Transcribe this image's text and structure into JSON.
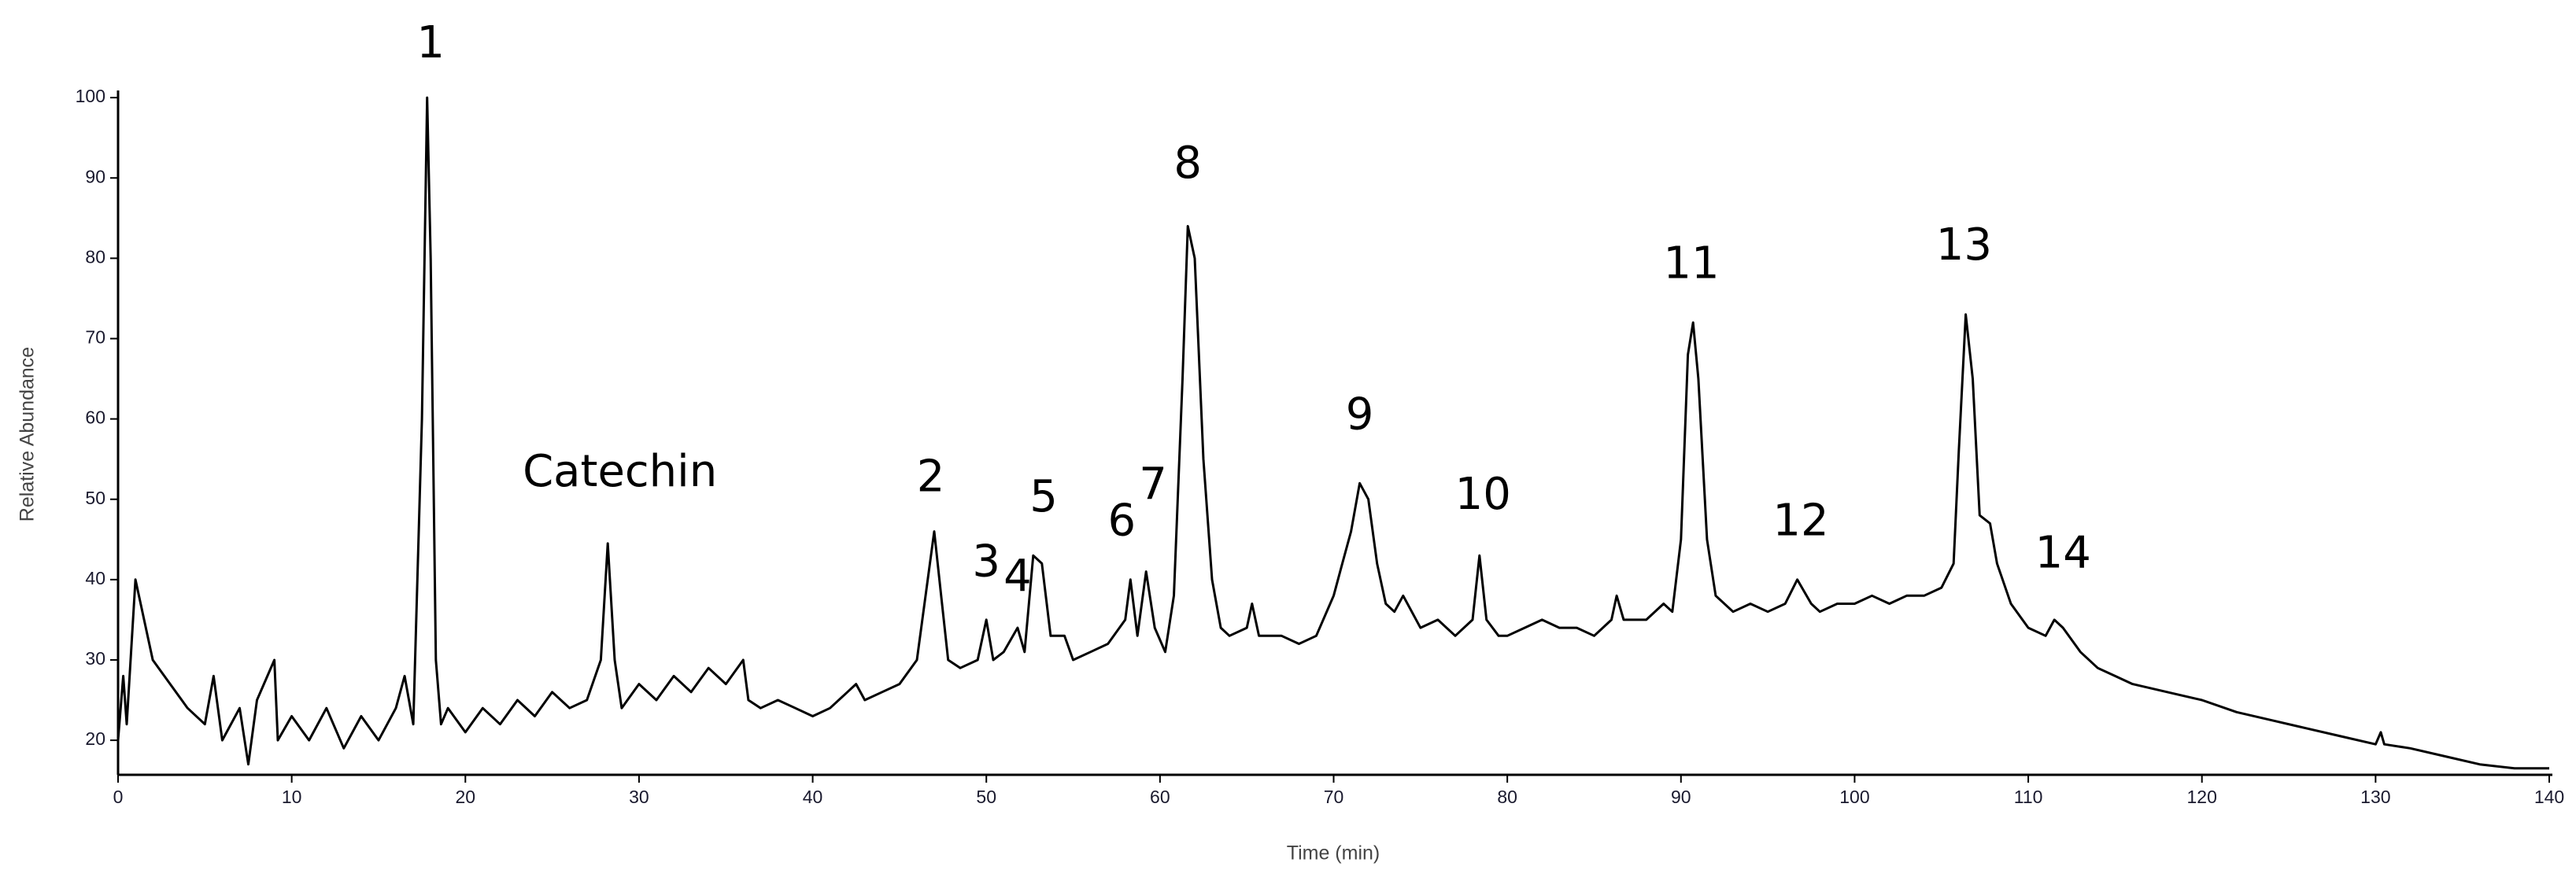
{
  "chart_data": {
    "type": "line",
    "x_label": "Time (min)",
    "y_label": "Relative Abundance",
    "color": "#000000",
    "xlim": [
      0,
      140
    ],
    "ylim": [
      15.7,
      100.5
    ],
    "xticks": [
      0,
      10,
      20,
      30,
      40,
      50,
      60,
      70,
      80,
      90,
      100,
      110,
      120,
      130,
      140
    ],
    "yticks": [
      20,
      30,
      40,
      50,
      60,
      70,
      80,
      90,
      100
    ],
    "x": [
      0,
      0.3,
      0.5,
      1,
      1.5,
      2,
      3,
      4,
      5,
      5.5,
      6,
      7,
      7.5,
      8,
      9,
      9.2,
      10,
      11,
      12,
      13,
      14,
      15,
      16,
      16.5,
      17,
      17.5,
      17.8,
      18,
      18.3,
      18.6,
      19,
      20,
      21,
      22,
      23,
      24,
      25,
      26,
      27,
      27.8,
      28.2,
      28.6,
      29,
      30,
      31,
      32,
      33,
      34,
      35,
      36,
      36.3,
      37,
      38,
      39,
      40,
      41,
      42,
      42.5,
      43,
      44,
      45,
      46,
      46.5,
      47,
      47.4,
      47.8,
      48.5,
      49.5,
      50,
      50.4,
      51,
      51.8,
      52.2,
      52.7,
      53.2,
      53.7,
      54.5,
      55,
      56,
      57,
      58,
      58.3,
      58.7,
      59.2,
      59.7,
      60.3,
      60.8,
      61.3,
      61.6,
      62,
      62.5,
      63,
      63.5,
      64,
      65,
      65.3,
      65.7,
      67,
      68,
      69,
      70,
      70.5,
      71,
      71.5,
      72,
      72.5,
      73,
      73.5,
      74,
      75,
      76,
      77,
      78,
      78.4,
      78.8,
      79.5,
      80,
      81,
      82,
      83,
      84,
      85,
      86,
      86.3,
      86.7,
      88,
      89,
      89.5,
      90,
      90.4,
      90.7,
      91,
      91.5,
      92,
      93,
      94,
      95,
      96,
      96.7,
      97.5,
      98,
      99,
      100,
      101,
      102,
      103,
      104,
      105,
      105.7,
      106,
      106.4,
      106.8,
      107.2,
      107.8,
      108.2,
      109,
      110,
      111,
      111.5,
      112,
      113,
      114,
      115,
      116,
      118,
      120,
      122,
      124,
      126,
      128,
      130,
      130.3,
      130.5,
      132,
      134,
      136,
      138,
      140
    ],
    "values": [
      20,
      28,
      22,
      40,
      35,
      30,
      27,
      24,
      22,
      28,
      20,
      24,
      17,
      25,
      30,
      20,
      23,
      20,
      24,
      19,
      23,
      20,
      24,
      28,
      22,
      60,
      100,
      80,
      30,
      22,
      24,
      21,
      24,
      22,
      25,
      23,
      26,
      24,
      25,
      30,
      44.5,
      30,
      24,
      27,
      25,
      28,
      26,
      29,
      27,
      30,
      25,
      24,
      25,
      24,
      23,
      24,
      26,
      27,
      25,
      26,
      27,
      30,
      38,
      46,
      38,
      30,
      29,
      30,
      35,
      30,
      31,
      34,
      31,
      43,
      42,
      33,
      33,
      30,
      31,
      32,
      35,
      40,
      33,
      41,
      34,
      31,
      38,
      65,
      84,
      80,
      55,
      40,
      34,
      33,
      34,
      37,
      33,
      33,
      32,
      33,
      38,
      42,
      46,
      52,
      50,
      42,
      37,
      36,
      38,
      34,
      35,
      33,
      35,
      43,
      35,
      33,
      33,
      34,
      35,
      34,
      34,
      33,
      35,
      38,
      35,
      35,
      37,
      36,
      45,
      68,
      72,
      65,
      45,
      38,
      36,
      37,
      36,
      37,
      40,
      37,
      36,
      37,
      37,
      38,
      37,
      38,
      38,
      39,
      42,
      56,
      73,
      65,
      48,
      47,
      42,
      37,
      34,
      33,
      35,
      34,
      31,
      29,
      28,
      27,
      26,
      25,
      23.5,
      22.5,
      21.5,
      20.5,
      19.5,
      21,
      19.5,
      19,
      18,
      17,
      16.5,
      16.5
    ],
    "annotations": [
      {
        "text": "1",
        "x": 18.0,
        "y": 106.5
      },
      {
        "text": "Catechin",
        "x": 28.9,
        "y": 53.1
      },
      {
        "text": "2",
        "x": 46.8,
        "y": 52.5
      },
      {
        "text": "3",
        "x": 50.0,
        "y": 41.9
      },
      {
        "text": "4",
        "x": 51.8,
        "y": 40.1
      },
      {
        "text": "5",
        "x": 53.3,
        "y": 50
      },
      {
        "text": "6",
        "x": 57.8,
        "y": 47
      },
      {
        "text": "7",
        "x": 59.6,
        "y": 51.5
      },
      {
        "text": "8",
        "x": 61.6,
        "y": 91.5
      },
      {
        "text": "9",
        "x": 71.5,
        "y": 60.2
      },
      {
        "text": "10",
        "x": 78.6,
        "y": 50.3
      },
      {
        "text": "11",
        "x": 90.6,
        "y": 79
      },
      {
        "text": "12",
        "x": 96.9,
        "y": 47
      },
      {
        "text": "13",
        "x": 106.3,
        "y": 81.3
      },
      {
        "text": "14",
        "x": 112.0,
        "y": 43
      }
    ]
  }
}
